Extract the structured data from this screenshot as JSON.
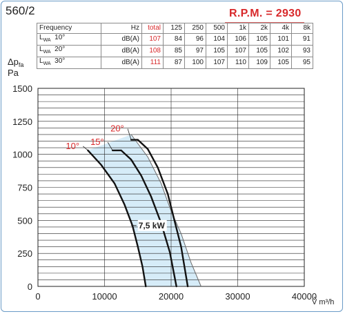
{
  "model": "560/2",
  "rpm_label": "R.P.M. = 2930",
  "colors": {
    "accent": "#d8282a",
    "shade": "#d6ecf8",
    "border": "#6a9ac6"
  },
  "table": {
    "headers": [
      "Frequency",
      "Hz",
      "total",
      "125",
      "250",
      "500",
      "1k",
      "2k",
      "4k",
      "8k"
    ],
    "rows": [
      {
        "label": "L",
        "sub": "WA",
        "angle": "10°",
        "unit": "dB(A)",
        "total": "107",
        "bands": [
          "84",
          "96",
          "104",
          "106",
          "105",
          "101",
          "91"
        ]
      },
      {
        "label": "L",
        "sub": "WA",
        "angle": "20°",
        "unit": "dB(A)",
        "total": "108",
        "bands": [
          "85",
          "97",
          "105",
          "107",
          "105",
          "102",
          "93"
        ]
      },
      {
        "label": "L",
        "sub": "WA",
        "angle": "30°",
        "unit": "dB(A)",
        "total": "111",
        "bands": [
          "87",
          "100",
          "107",
          "110",
          "109",
          "105",
          "95"
        ]
      }
    ]
  },
  "chart_data": {
    "type": "line",
    "ylabel": "Δpfa",
    "ylabel_sub": "fa",
    "yunit": "Pa",
    "xlabel": "V m³/h",
    "xlim": [
      0,
      40000
    ],
    "ylim": [
      0,
      1500
    ],
    "x_ticks": [
      "0",
      "10000",
      "20000",
      "30000",
      "40000"
    ],
    "y_ticks": [
      "0",
      "250",
      "500",
      "750",
      "1000",
      "1250",
      "1500"
    ],
    "series": [
      {
        "name": "10°",
        "points": [
          [
            7500,
            1030
          ],
          [
            9500,
            920
          ],
          [
            11500,
            780
          ],
          [
            13000,
            620
          ],
          [
            14200,
            460
          ],
          [
            15000,
            300
          ],
          [
            15700,
            150
          ],
          [
            16200,
            0
          ]
        ]
      },
      {
        "name": "15°",
        "points": [
          [
            11200,
            1030
          ],
          [
            12500,
            1030
          ],
          [
            14000,
            960
          ],
          [
            15500,
            840
          ],
          [
            17000,
            680
          ],
          [
            18500,
            480
          ],
          [
            19800,
            260
          ],
          [
            20800,
            0
          ]
        ]
      },
      {
        "name": "20°",
        "points": [
          [
            14000,
            1110
          ],
          [
            15000,
            1110
          ],
          [
            16500,
            1040
          ],
          [
            18000,
            900
          ],
          [
            19500,
            700
          ],
          [
            20500,
            500
          ],
          [
            21500,
            300
          ],
          [
            22500,
            0
          ]
        ]
      }
    ],
    "power_label": "7,5 kW",
    "power_line": [
      [
        14000,
        1150
      ],
      [
        16500,
        980
      ],
      [
        18500,
        780
      ],
      [
        20000,
        570
      ],
      [
        21500,
        400
      ],
      [
        23000,
        180
      ],
      [
        24500,
        0
      ]
    ],
    "grid": true
  }
}
